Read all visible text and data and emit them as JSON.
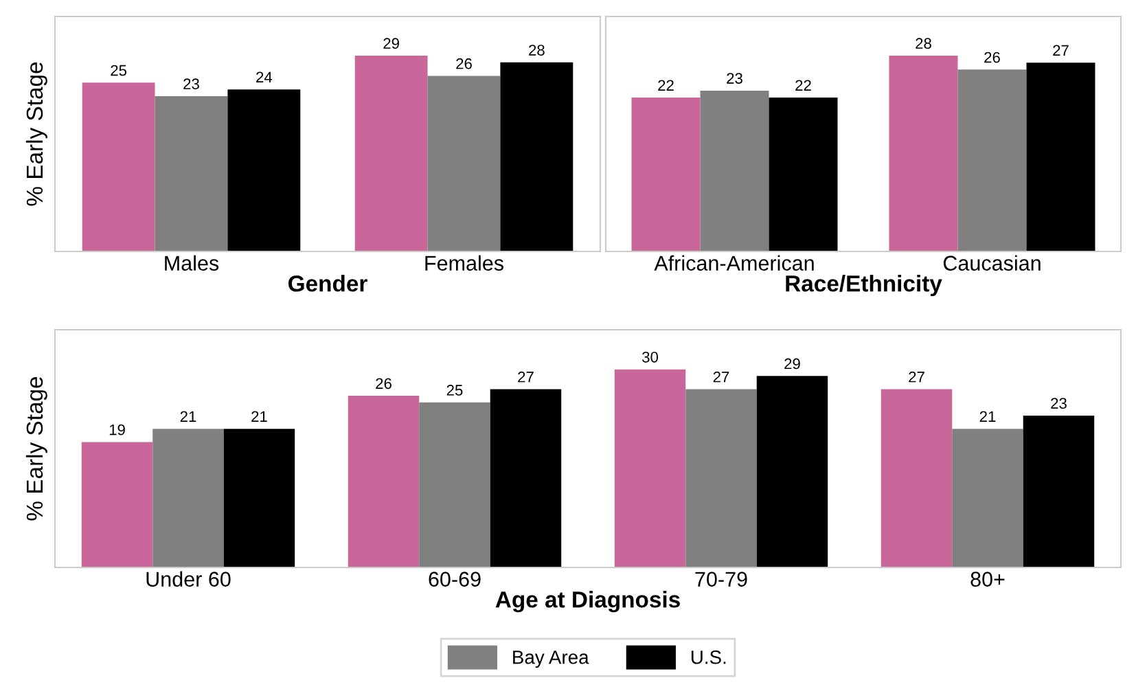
{
  "chart_data": [
    {
      "type": "bar",
      "xlabel": "Gender",
      "ylabel": "% Early Stage",
      "categories": [
        "Males",
        "Females"
      ],
      "series": [
        {
          "color": "#c9679a",
          "values": [
            25,
            29
          ]
        },
        {
          "color": "#808080",
          "values": [
            23,
            26
          ]
        },
        {
          "color": "#000000",
          "values": [
            24,
            28
          ]
        }
      ],
      "data_labels": true,
      "tick_labels": "x",
      "grid": false
    },
    {
      "type": "bar",
      "xlabel": "Race/Ethnicity",
      "categories": [
        "African-American",
        "Caucasian"
      ],
      "series": [
        {
          "color": "#c9679a",
          "values": [
            22,
            28
          ]
        },
        {
          "color": "#808080",
          "values": [
            23,
            26
          ]
        },
        {
          "color": "#000000",
          "values": [
            22,
            27
          ]
        }
      ],
      "data_labels": true,
      "tick_labels": "x",
      "grid": false
    },
    {
      "type": "bar",
      "xlabel": "Age at Diagnosis",
      "ylabel": "% Early Stage",
      "categories": [
        "Under 60",
        "60-69",
        "70-79",
        "80+"
      ],
      "series": [
        {
          "color": "#c9679a",
          "values": [
            19,
            26,
            30,
            27
          ]
        },
        {
          "name": "Bay Area",
          "color": "#808080",
          "values": [
            21,
            25,
            27,
            21
          ]
        },
        {
          "name": "U.S.",
          "color": "#000000",
          "values": [
            21,
            27,
            29,
            23
          ]
        }
      ],
      "data_labels": true,
      "tick_labels": "x",
      "grid": false,
      "legend": "bottom"
    }
  ]
}
